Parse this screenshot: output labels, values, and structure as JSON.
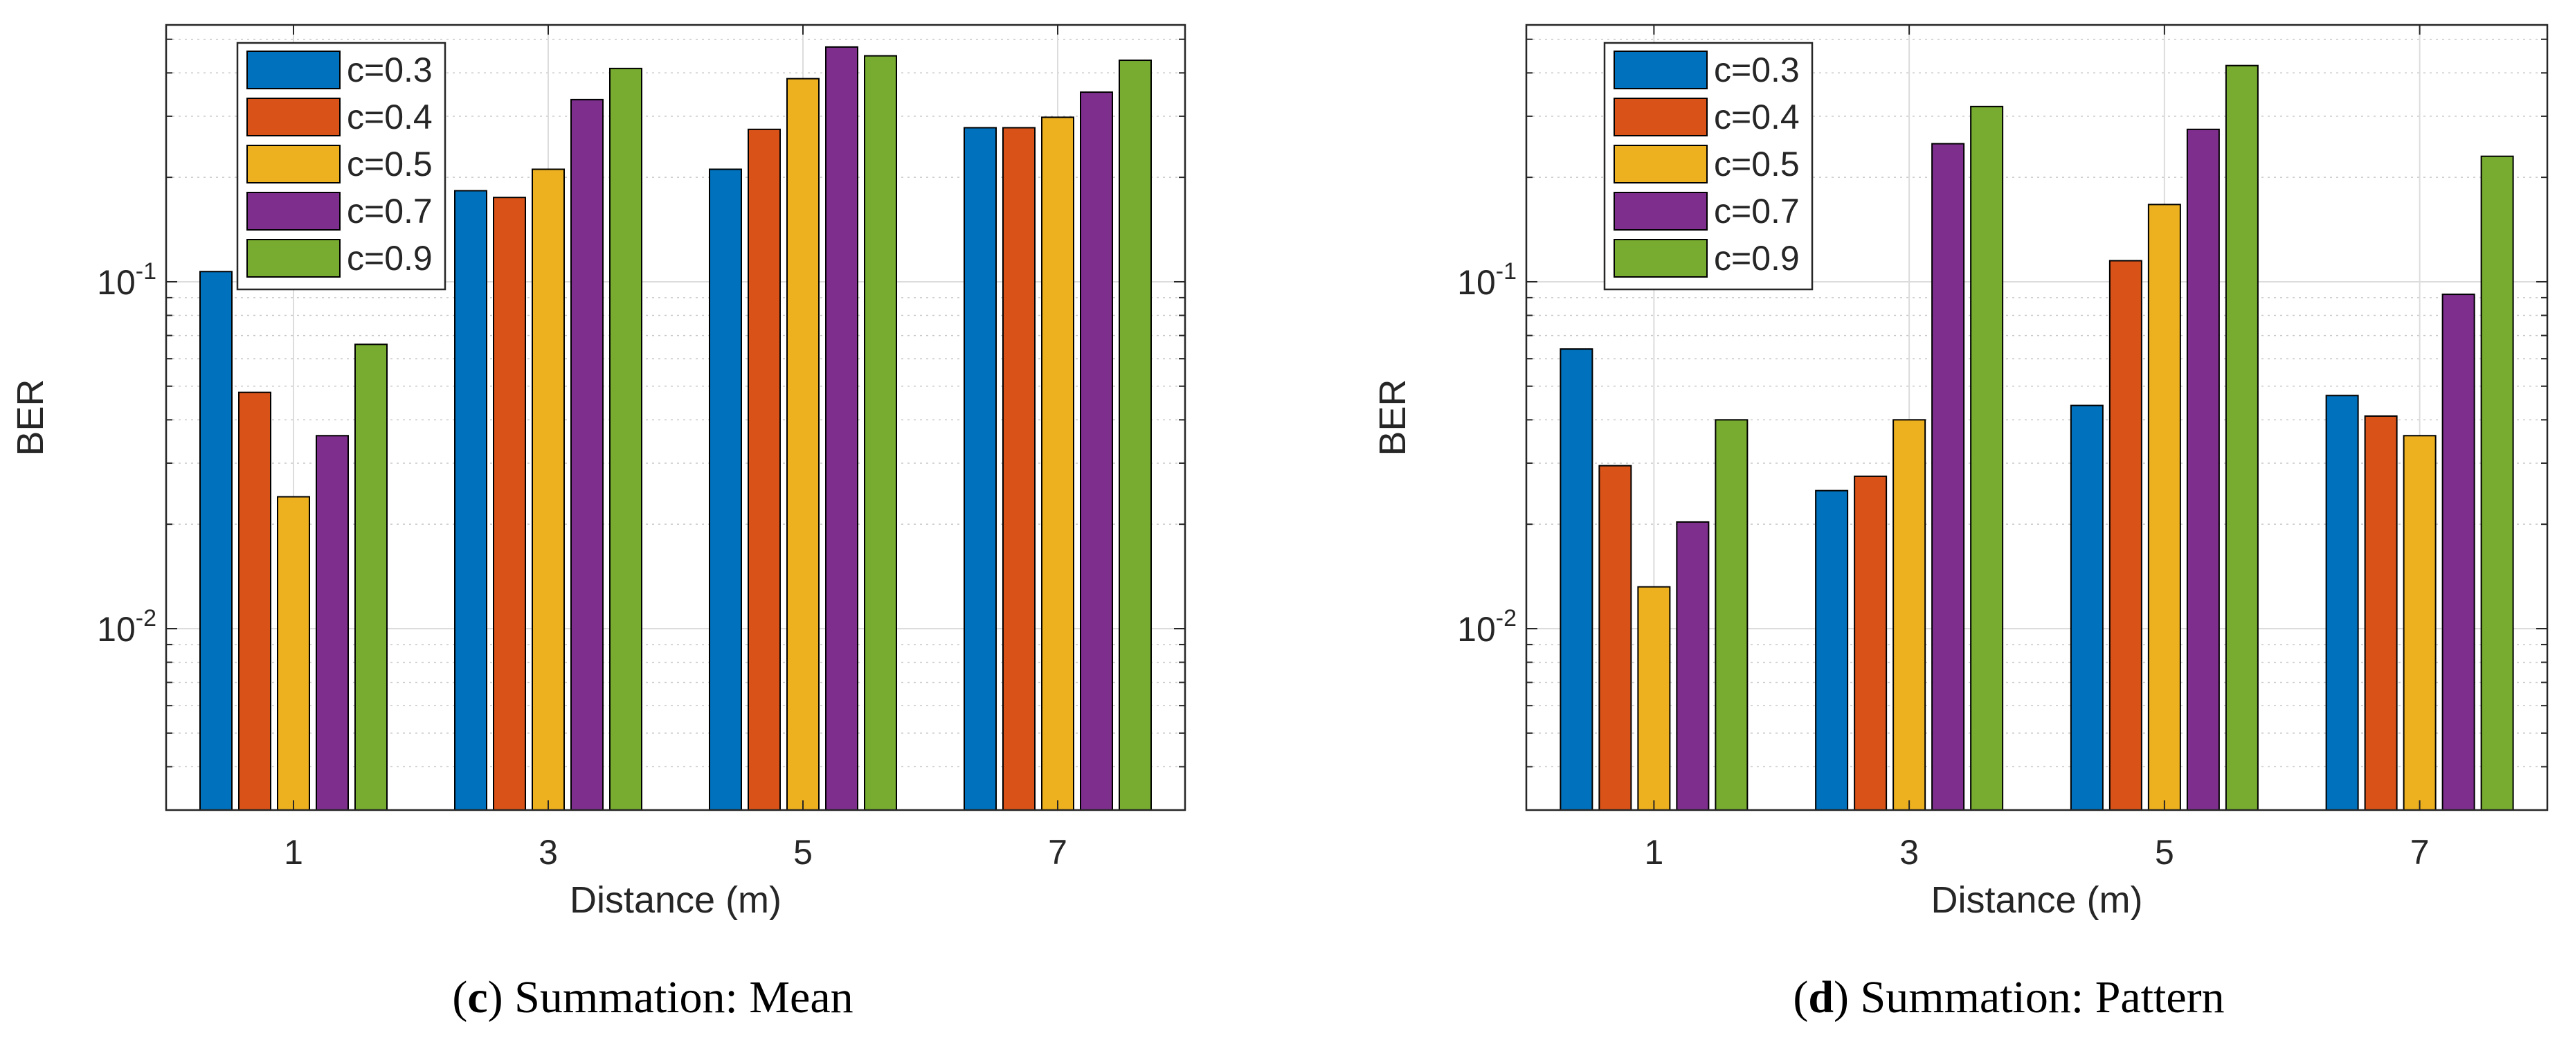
{
  "chart_data": [
    {
      "type": "bar",
      "panel_letter": "c",
      "caption_text": "Summation: Mean",
      "title": "(c) Summation: Mean",
      "xlabel": "Distance (m)",
      "ylabel": "BER",
      "yscale": "log",
      "ylim": [
        0.003,
        0.55
      ],
      "yticks": [
        {
          "value": 0.01,
          "base": "10",
          "exp": "-2"
        },
        {
          "value": 0.1,
          "base": "10",
          "exp": "-1"
        }
      ],
      "categories": [
        "1",
        "3",
        "5",
        "7"
      ],
      "grid": true,
      "legend_position": "top-left",
      "series": [
        {
          "name": "c=0.3",
          "color": "#0072BD",
          "values": [
            0.107,
            0.183,
            0.211,
            0.278
          ]
        },
        {
          "name": "c=0.4",
          "color": "#D95319",
          "values": [
            0.048,
            0.175,
            0.275,
            0.278
          ]
        },
        {
          "name": "c=0.5",
          "color": "#EDB120",
          "values": [
            0.024,
            0.211,
            0.385,
            0.298
          ]
        },
        {
          "name": "c=0.7",
          "color": "#7E2F8E",
          "values": [
            0.036,
            0.335,
            0.475,
            0.352
          ]
        },
        {
          "name": "c=0.9",
          "color": "#77AC30",
          "values": [
            0.066,
            0.412,
            0.448,
            0.435
          ]
        }
      ]
    },
    {
      "type": "bar",
      "panel_letter": "d",
      "caption_text": "Summation: Pattern",
      "title": "(d) Summation: Pattern",
      "xlabel": "Distance (m)",
      "ylabel": "BER",
      "yscale": "log",
      "ylim": [
        0.003,
        0.55
      ],
      "yticks": [
        {
          "value": 0.01,
          "base": "10",
          "exp": "-2"
        },
        {
          "value": 0.1,
          "base": "10",
          "exp": "-1"
        }
      ],
      "categories": [
        "1",
        "3",
        "5",
        "7"
      ],
      "grid": true,
      "legend_position": "top-left",
      "series": [
        {
          "name": "c=0.3",
          "color": "#0072BD",
          "values": [
            0.064,
            0.025,
            0.044,
            0.047
          ]
        },
        {
          "name": "c=0.4",
          "color": "#D95319",
          "values": [
            0.0295,
            0.0275,
            0.115,
            0.041
          ]
        },
        {
          "name": "c=0.5",
          "color": "#EDB120",
          "values": [
            0.0132,
            0.04,
            0.167,
            0.036
          ]
        },
        {
          "name": "c=0.7",
          "color": "#7E2F8E",
          "values": [
            0.0203,
            0.25,
            0.275,
            0.092
          ]
        },
        {
          "name": "c=0.9",
          "color": "#77AC30",
          "values": [
            0.04,
            0.32,
            0.42,
            0.23
          ]
        }
      ]
    }
  ]
}
